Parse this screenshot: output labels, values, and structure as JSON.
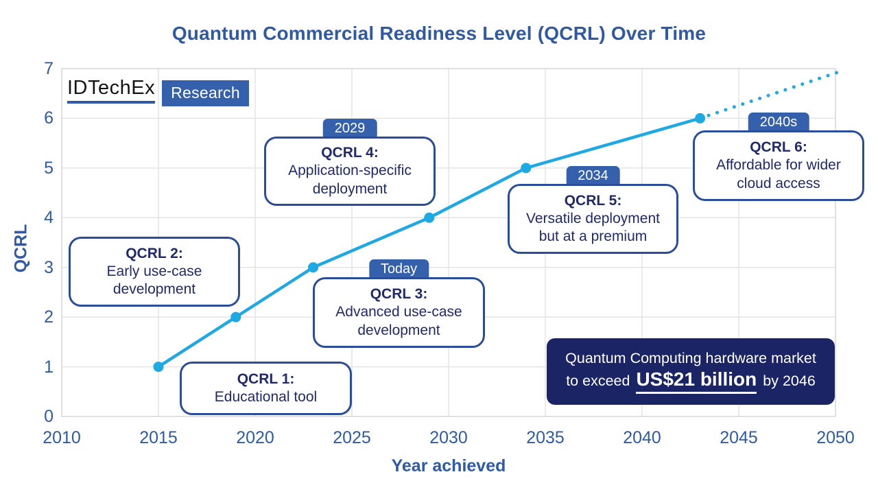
{
  "title": "Quantum Commercial Readiness Level (QCRL) Over Time",
  "logo": {
    "brand": "IDTechEx",
    "suffix": "Research"
  },
  "chart_data": {
    "type": "line",
    "title": "Quantum Commercial Readiness Level (QCRL) Over Time",
    "xlabel": "Year achieved",
    "ylabel": "QCRL",
    "xlim": [
      2010,
      2050
    ],
    "ylim": [
      0,
      7
    ],
    "x_ticks": [
      2010,
      2015,
      2020,
      2025,
      2030,
      2035,
      2040,
      2045,
      2050
    ],
    "y_ticks": [
      0,
      1,
      2,
      3,
      4,
      5,
      6,
      7
    ],
    "grid": true,
    "legend": "none",
    "line_color": "#1EA9E2",
    "points": [
      {
        "year": 2015,
        "qcrl": 1
      },
      {
        "year": 2019,
        "qcrl": 2
      },
      {
        "year": 2023,
        "qcrl": 3
      },
      {
        "year": 2029,
        "qcrl": 4
      },
      {
        "year": 2034,
        "qcrl": 5
      },
      {
        "year": 2043,
        "qcrl": 6
      }
    ],
    "projection": {
      "style": "dotted",
      "end": {
        "year": 2050.3,
        "qcrl": 6.95
      }
    }
  },
  "annotations": [
    {
      "badge": "",
      "title": "QCRL 1:",
      "body": "Educational tool"
    },
    {
      "badge": "",
      "title": "QCRL 2:",
      "body": "Early use-case development"
    },
    {
      "badge": "Today",
      "title": "QCRL 3:",
      "body": "Advanced use-case development"
    },
    {
      "badge": "2029",
      "title": "QCRL 4:",
      "body": "Application-specific deployment"
    },
    {
      "badge": "2034",
      "title": "QCRL 5:",
      "body": "Versatile deployment but at a premium"
    },
    {
      "badge": "2040s",
      "title": "QCRL 6:",
      "body": "Affordable for wider cloud access"
    }
  ],
  "market_note": {
    "line1": "Quantum Computing hardware market",
    "line2_prefix": "to exceed",
    "highlight": "US$21 billion",
    "line2_suffix": "by 2046"
  },
  "colors": {
    "line": "#1EA9E2",
    "title_text": "#3059A4",
    "axis_text": "#2E5AA8",
    "callout_border": "#2A4D9B",
    "callout_text": "#20296B",
    "badge_bg": "#3560AC",
    "market_box_bg": "#1B2566",
    "grid": "#E4E4E4",
    "plot_border": "#D6D6D6"
  }
}
